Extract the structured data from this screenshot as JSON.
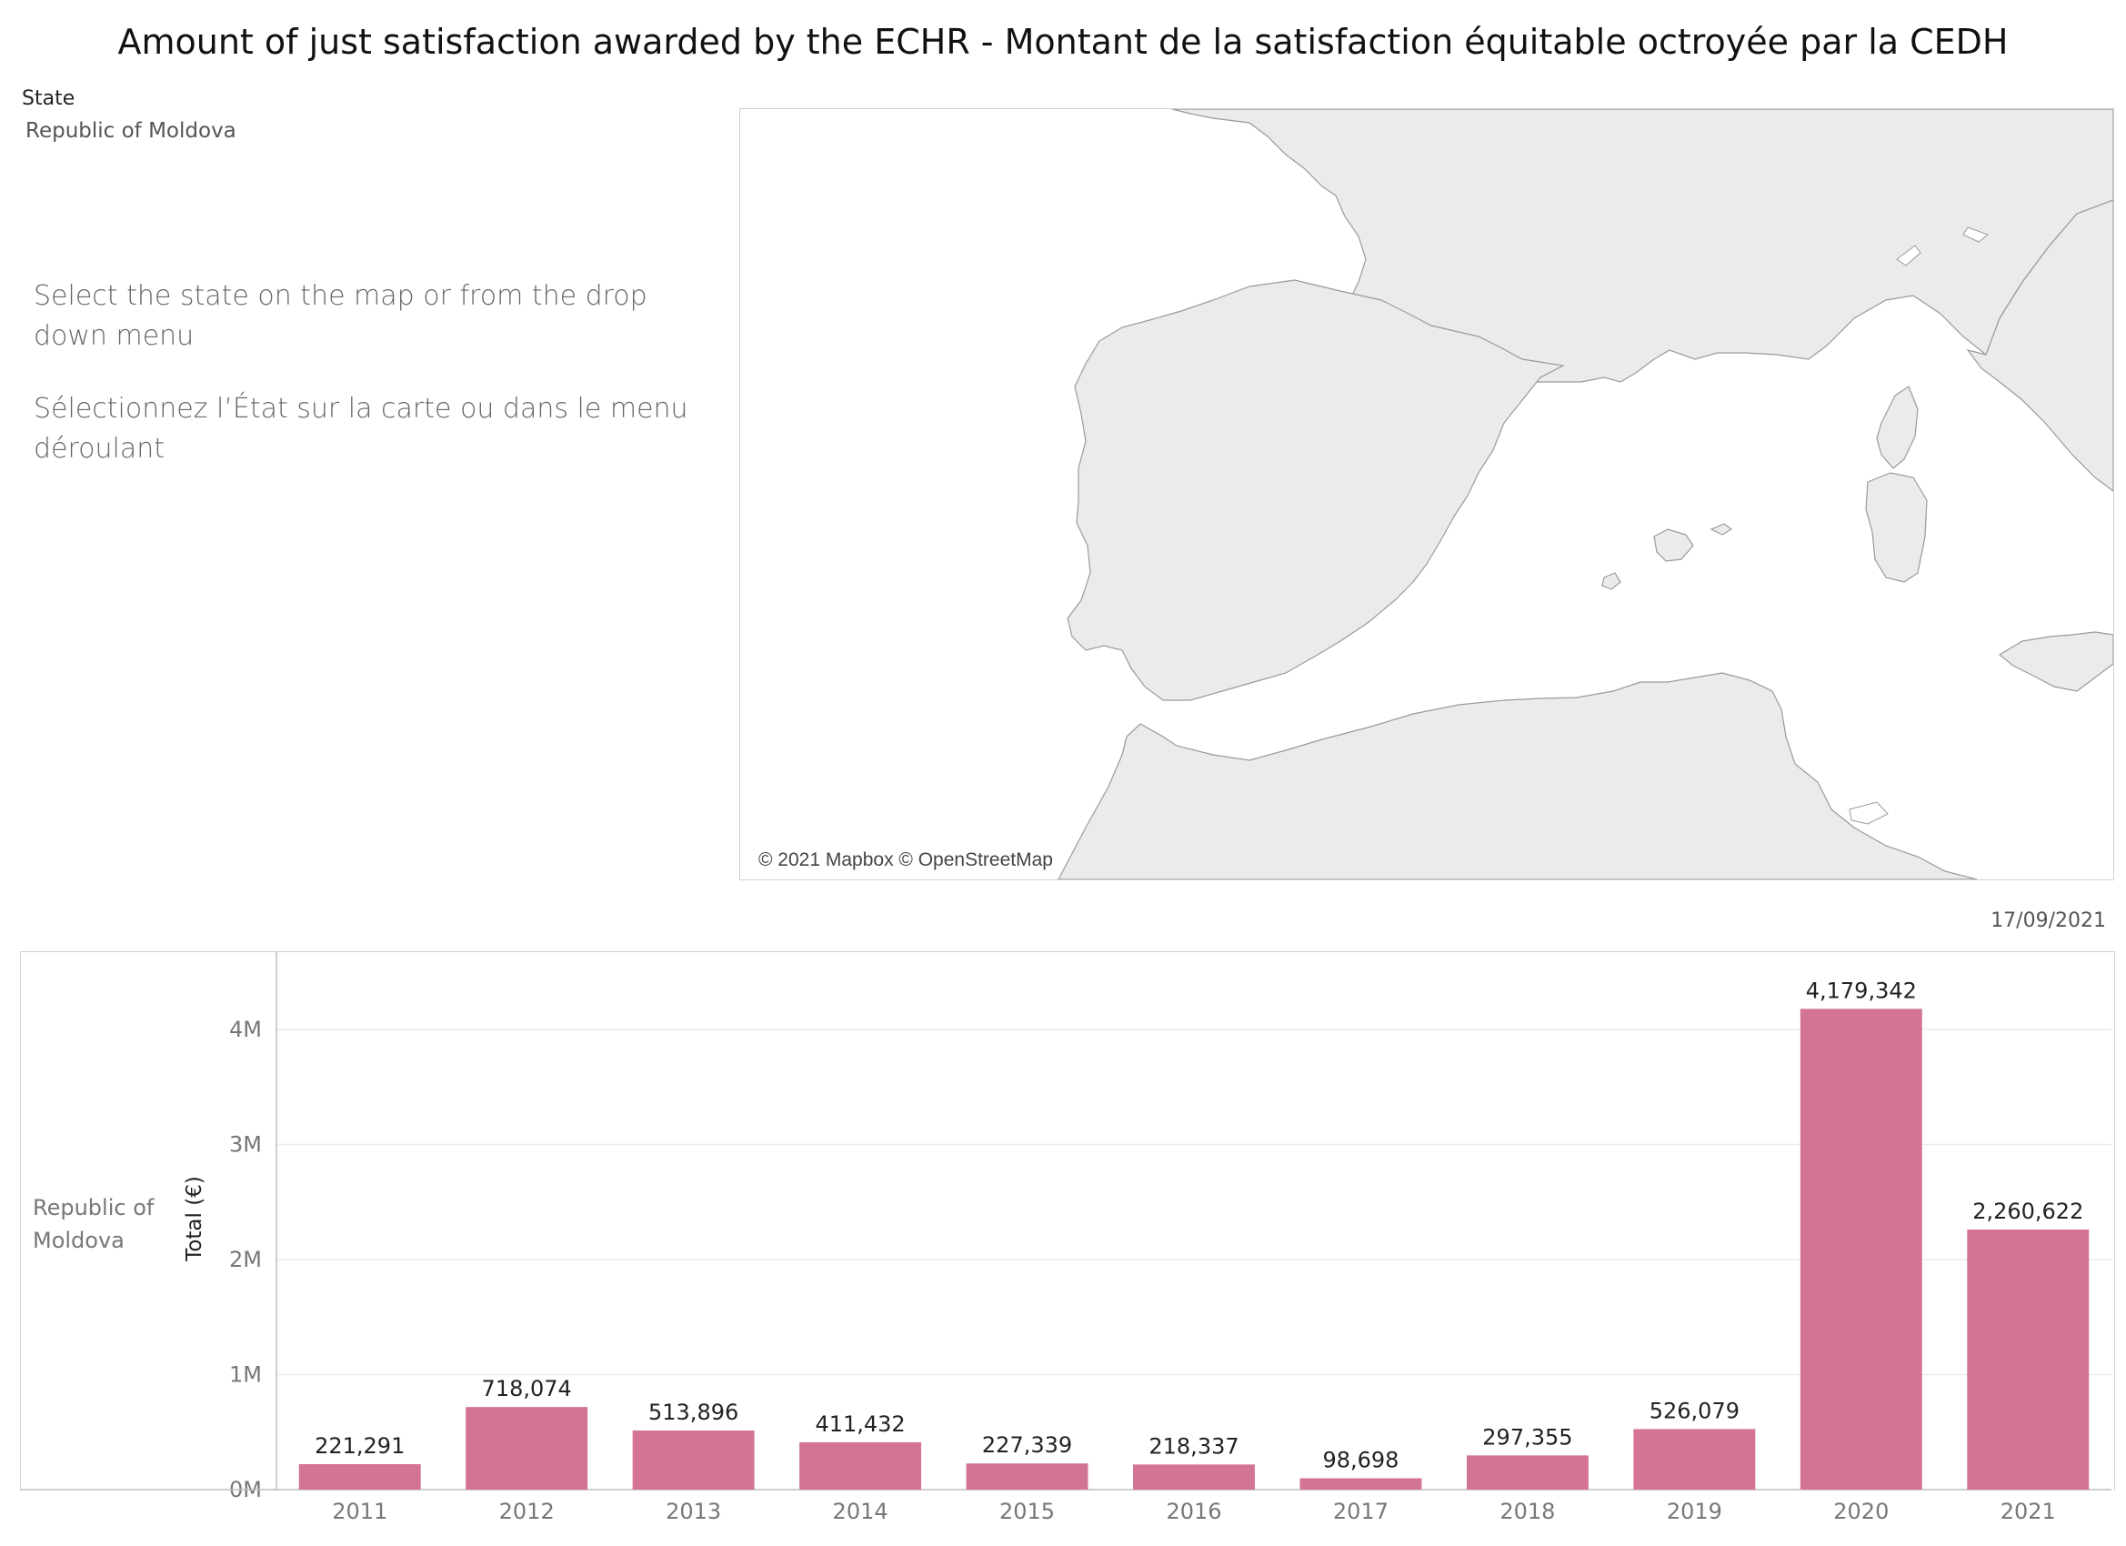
{
  "title": "Amount of just satisfaction awarded by the ECHR - Montant de la satisfaction équitable octroyée par la CEDH",
  "filter": {
    "label": "State",
    "value": "Republic of Moldova"
  },
  "instructions": {
    "en": "Select the state on the map or from the drop down menu",
    "fr": "Sélectionnez l’État sur la carte ou dans le menu déroulant"
  },
  "map": {
    "attribution": "© 2021 Mapbox © OpenStreetMap",
    "land_color": "#ebebeb",
    "water_color": "#ffffff"
  },
  "date": "17/09/2021",
  "colors": {
    "bar": "#d37395",
    "grid": "#ececec",
    "axis": "#bdbdbd",
    "tick_text": "#777777"
  },
  "chart_data": {
    "type": "bar",
    "row_label": "Republic of Moldova",
    "ylabel": "Total (€)",
    "categories": [
      "2011",
      "2012",
      "2013",
      "2014",
      "2015",
      "2016",
      "2017",
      "2018",
      "2019",
      "2020",
      "2021"
    ],
    "values": [
      221291,
      718074,
      513896,
      411432,
      227339,
      218337,
      98698,
      297355,
      526079,
      4179342,
      2260622
    ],
    "value_labels": [
      "221,291",
      "718,074",
      "513,896",
      "411,432",
      "227,339",
      "218,337",
      "98,698",
      "297,355",
      "526,079",
      "4,179,342",
      "2,260,622"
    ],
    "yticks": [
      0,
      1000000,
      2000000,
      3000000,
      4000000
    ],
    "ytick_labels": [
      "0M",
      "1M",
      "2M",
      "3M",
      "4M"
    ],
    "ylim": [
      0,
      4680000
    ],
    "grid": true
  }
}
